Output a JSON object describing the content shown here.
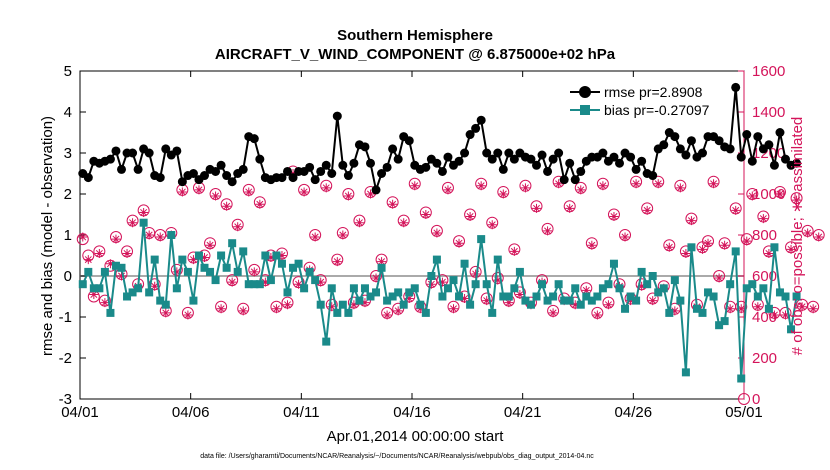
{
  "chart_data": {
    "type": "line",
    "title": "Southern Hemisphere",
    "subtitle": "AIRCRAFT_V_WIND_COMPONENT @ 6.875000e+02 hPa",
    "xlabel": "Apr.01,2014 00:00:00 start",
    "ylabel": "rmse and bias (model - observation)",
    "y2label": "# of obs: o=possible; ∗=assimilated",
    "footnote": "data file: /Users/gharamti/Documents/NCAR/Reanalysis/~/Documents/NCAR/Reanalysis/webpub/obs_diag_output_2014-04.nc",
    "xlim": [
      0,
      30
    ],
    "ylim": [
      -3,
      5
    ],
    "y2lim": [
      0,
      1600
    ],
    "xticks": [
      0,
      5,
      10,
      15,
      20,
      25,
      30
    ],
    "xtick_labels": [
      "04/01",
      "04/06",
      "04/11",
      "04/16",
      "04/21",
      "04/26",
      "05/01"
    ],
    "yticks": [
      -3,
      -2,
      -1,
      0,
      1,
      2,
      3,
      4,
      5
    ],
    "ytick_labels": [
      "-3",
      "-2",
      "-1",
      "0",
      "1",
      "2",
      "3",
      "4",
      "5"
    ],
    "y2ticks": [
      0,
      200,
      400,
      600,
      800,
      1000,
      1200,
      1400,
      1600
    ],
    "y2tick_labels": [
      "0",
      "200",
      "400",
      "600",
      "800",
      "1000",
      "1200",
      "1400",
      "1600"
    ],
    "zero_line": 0,
    "x_step_days": 0.25,
    "colors": {
      "rmse": "#000000",
      "bias": "#1a8a8a",
      "obs": "#d4145a",
      "zero": "#aaaaaa",
      "axis": "#000000"
    },
    "series": [
      {
        "name": "rmse pr=2.8908",
        "marker": "circle",
        "values": [
          2.5,
          2.4,
          2.8,
          2.75,
          2.8,
          2.85,
          3.05,
          2.6,
          3.0,
          3.0,
          2.6,
          3.1,
          3.0,
          2.45,
          2.4,
          3.1,
          2.95,
          3.05,
          2.3,
          2.45,
          2.5,
          2.35,
          2.45,
          2.6,
          2.55,
          2.7,
          2.45,
          2.3,
          2.5,
          2.6,
          3.4,
          3.35,
          2.85,
          2.4,
          2.35,
          2.4,
          2.4,
          2.55,
          2.4,
          2.55,
          2.55,
          2.65,
          2.35,
          2.55,
          2.7,
          2.5,
          3.9,
          2.7,
          2.45,
          2.75,
          3.2,
          3.15,
          2.75,
          2.1,
          2.5,
          2.65,
          3.1,
          2.85,
          3.4,
          3.3,
          2.7,
          2.6,
          2.65,
          2.85,
          2.75,
          2.55,
          2.9,
          2.7,
          2.8,
          3.0,
          3.45,
          3.6,
          3.8,
          3.0,
          2.85,
          3.0,
          2.6,
          3.0,
          2.85,
          3.0,
          2.9,
          2.85,
          2.7,
          2.95,
          2.55,
          2.85,
          3.0,
          2.35,
          2.75,
          2.35,
          2.55,
          2.8,
          2.9,
          2.9,
          3.0,
          2.8,
          2.9,
          2.75,
          3.0,
          2.9,
          2.6,
          2.8,
          2.5,
          2.45,
          3.1,
          3.2,
          3.5,
          3.4,
          3.1,
          2.95,
          3.3,
          2.9,
          3.0,
          3.4,
          3.4,
          3.3,
          3.15,
          3.1,
          4.6,
          2.9,
          3.45,
          2.8,
          3.4,
          3.1,
          3.2,
          2.7,
          3.5,
          2.85,
          2.7,
          2.75
        ],
        "display": "rmse pr=2.8908"
      },
      {
        "name": "bias pr=-0.27097",
        "marker": "square",
        "values": [
          -0.2,
          0.1,
          -0.3,
          -0.3,
          0.1,
          -0.9,
          0.25,
          0.2,
          -0.5,
          -0.4,
          -0.3,
          1.3,
          -0.4,
          0.4,
          -0.6,
          -0.7,
          1.0,
          -0.3,
          0.4,
          0.1,
          -0.6,
          0.5,
          0.2,
          0.1,
          -0.1,
          0.5,
          0.2,
          0.8,
          0.1,
          0.6,
          -0.2,
          -0.2,
          -0.2,
          0.5,
          -0.1,
          0.5,
          0.3,
          -0.4,
          0.2,
          0.3,
          -0.3,
          0.1,
          -0.1,
          -0.7,
          -1.6,
          -0.3,
          -0.9,
          -0.7,
          -0.9,
          -0.3,
          -0.6,
          -0.3,
          -0.5,
          -0.4,
          0.2,
          -0.6,
          -0.5,
          -0.4,
          -0.7,
          -0.4,
          -0.3,
          -0.7,
          -0.9,
          0.0,
          0.4,
          -0.5,
          -0.3,
          -0.1,
          -0.5,
          0.3,
          -0.7,
          -0.2,
          0.9,
          -0.2,
          -0.9,
          0.4,
          -0.5,
          -0.5,
          -0.3,
          0.1,
          -0.6,
          -0.7,
          -0.5,
          -0.2,
          -0.6,
          -0.5,
          -0.2,
          -0.6,
          -0.6,
          -0.3,
          -0.7,
          -0.5,
          -0.6,
          -0.5,
          -0.3,
          -0.2,
          0.3,
          -0.3,
          -0.8,
          -0.5,
          -0.6,
          0.1,
          -0.2,
          0.0,
          -0.4,
          -0.3,
          -0.9,
          -0.1,
          -0.6,
          -2.35,
          0.7,
          -0.8,
          -0.9,
          -0.4,
          -0.5,
          -1.2,
          -1.1,
          -0.2,
          0.6,
          -2.5,
          -0.3,
          -0.2,
          -0.5,
          -0.3,
          -0.8,
          0.7,
          -0.4,
          -0.5,
          -1.3,
          -0.5
        ],
        "display": "bias pr=-0.27097"
      },
      {
        "name": "possible obs",
        "marker": "circle-open",
        "axis": "right",
        "values": [
          780,
          700,
          500,
          720,
          480,
          650,
          790,
          610,
          720,
          870,
          560,
          920,
          810,
          560,
          800,
          430,
          810,
          630,
          1020,
          420,
          690,
          1030,
          700,
          760,
          1000,
          450,
          950,
          580,
          850,
          440,
          1020,
          630,
          960,
          580,
          700,
          450,
          710,
          470,
          1110,
          570,
          1020,
          640,
          800,
          580,
          1040,
          460,
          680,
          810,
          1000,
          470,
          870,
          480,
          1010,
          600,
          680,
          420,
          960,
          440,
          870,
          500,
          1050,
          450,
          910,
          570,
          820,
          580,
          1030,
          450,
          770,
          500,
          900,
          620,
          1050,
          490,
          860,
          590,
          1010,
          480,
          730,
          520,
          1040,
          470,
          940,
          580,
          830,
          430,
          1060,
          490,
          940,
          470,
          1030,
          540,
          760,
          420,
          1050,
          470,
          900,
          560,
          800,
          490,
          1060,
          560,
          930,
          490,
          1060,
          550,
          750,
          440,
          1040,
          720,
          880,
          460,
          740,
          770,
          1060,
          600,
          760,
          450,
          930,
          450,
          780,
          1000,
          460,
          890,
          720,
          420,
          1010,
          420,
          740,
          980,
          460,
          820,
          450,
          800
        ],
        "display": "possible"
      },
      {
        "name": "assimilated obs",
        "marker": "asterisk",
        "axis": "right",
        "values": [
          790,
          680,
          510,
          710,
          470,
          660,
          780,
          600,
          710,
          860,
          550,
          910,
          800,
          550,
          790,
          420,
          800,
          620,
          1010,
          410,
          680,
          1020,
          690,
          750,
          990,
          440,
          940,
          570,
          840,
          430,
          1010,
          620,
          950,
          570,
          690,
          440,
          700,
          460,
          1100,
          560,
          1010,
          630,
          790,
          570,
          1030,
          450,
          670,
          800,
          990,
          460,
          860,
          470,
          1000,
          590,
          670,
          410,
          950,
          430,
          860,
          490,
          1040,
          440,
          900,
          560,
          810,
          570,
          1020,
          440,
          760,
          490,
          890,
          610,
          1040,
          480,
          850,
          580,
          1000,
          470,
          720,
          510,
          1030,
          460,
          930,
          570,
          820,
          420,
          1050,
          480,
          930,
          460,
          1020,
          530,
          750,
          410,
          1040,
          460,
          890,
          550,
          790,
          480,
          1050,
          550,
          920,
          480,
          1050,
          540,
          740,
          430,
          1030,
          710,
          870,
          450,
          730,
          760,
          1050,
          590,
          750,
          440,
          920,
          440,
          770,
          990,
          450,
          880,
          710,
          410,
          1000,
          410,
          730,
          970,
          450,
          810,
          440,
          790
        ],
        "display": "assimilated"
      }
    ],
    "legend_position": "top-right"
  }
}
